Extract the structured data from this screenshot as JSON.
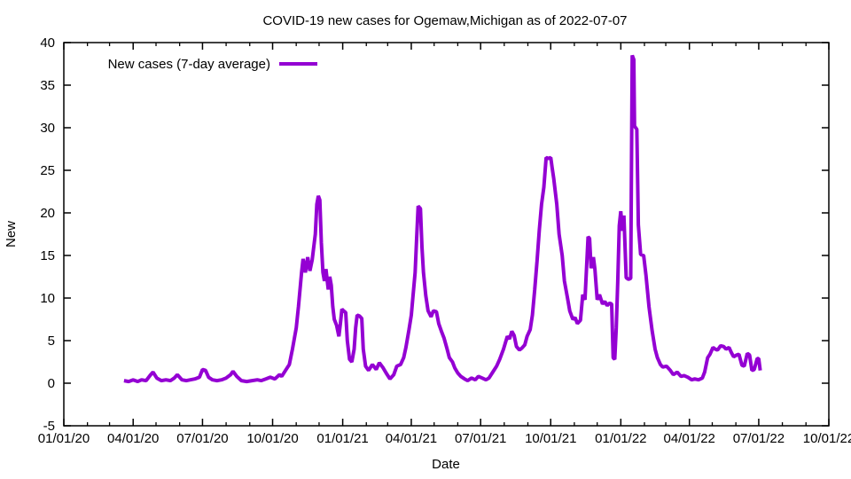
{
  "chart_data": {
    "type": "line",
    "title": "COVID-19 new cases for Ogemaw,Michigan as of 2022-07-07",
    "xlabel": "Date",
    "ylabel": "New",
    "x_range": [
      "2020-01-01",
      "2022-10-01"
    ],
    "ylim": [
      -5,
      40
    ],
    "y_ticks": [
      -5,
      0,
      5,
      10,
      15,
      20,
      25,
      30,
      35,
      40
    ],
    "x_major_ticks": [
      {
        "date": "2020-01-01",
        "label": "01/01/20"
      },
      {
        "date": "2020-04-01",
        "label": "04/01/20"
      },
      {
        "date": "2020-07-01",
        "label": "07/01/20"
      },
      {
        "date": "2020-10-01",
        "label": "10/01/20"
      },
      {
        "date": "2021-01-01",
        "label": "01/01/21"
      },
      {
        "date": "2021-04-01",
        "label": "04/01/21"
      },
      {
        "date": "2021-07-01",
        "label": "07/01/21"
      },
      {
        "date": "2021-10-01",
        "label": "10/01/21"
      },
      {
        "date": "2022-01-01",
        "label": "01/01/22"
      },
      {
        "date": "2022-04-01",
        "label": "04/01/22"
      },
      {
        "date": "2022-07-01",
        "label": "07/01/22"
      },
      {
        "date": "2022-10-01",
        "label": "10/01/22"
      }
    ],
    "x_minor_tick_interval_months": 1,
    "grid": false,
    "legend_position": "top-left-inside",
    "background_color": "#ffffff",
    "axis_color": "#000000",
    "text_color": "#000000",
    "series": [
      {
        "name": "New cases (7-day average)",
        "color": "#9400d3",
        "line_width": 4,
        "points": [
          [
            "2020-03-20",
            0.3
          ],
          [
            "2020-03-26",
            0.2
          ],
          [
            "2020-04-01",
            0.4
          ],
          [
            "2020-04-07",
            0.2
          ],
          [
            "2020-04-12",
            0.4
          ],
          [
            "2020-04-18",
            0.3
          ],
          [
            "2020-04-24",
            1.0
          ],
          [
            "2020-04-27",
            1.3
          ],
          [
            "2020-05-02",
            0.6
          ],
          [
            "2020-05-08",
            0.3
          ],
          [
            "2020-05-14",
            0.4
          ],
          [
            "2020-05-20",
            0.3
          ],
          [
            "2020-05-25",
            0.6
          ],
          [
            "2020-05-29",
            1.0
          ],
          [
            "2020-06-04",
            0.4
          ],
          [
            "2020-06-10",
            0.3
          ],
          [
            "2020-06-15",
            0.4
          ],
          [
            "2020-06-21",
            0.5
          ],
          [
            "2020-06-27",
            0.7
          ],
          [
            "2020-07-01",
            1.6
          ],
          [
            "2020-07-05",
            1.5
          ],
          [
            "2020-07-09",
            0.7
          ],
          [
            "2020-07-14",
            0.4
          ],
          [
            "2020-07-20",
            0.3
          ],
          [
            "2020-07-26",
            0.4
          ],
          [
            "2020-08-01",
            0.6
          ],
          [
            "2020-08-07",
            1.0
          ],
          [
            "2020-08-10",
            1.4
          ],
          [
            "2020-08-15",
            0.8
          ],
          [
            "2020-08-21",
            0.3
          ],
          [
            "2020-08-28",
            0.2
          ],
          [
            "2020-09-04",
            0.3
          ],
          [
            "2020-09-11",
            0.4
          ],
          [
            "2020-09-16",
            0.3
          ],
          [
            "2020-09-22",
            0.5
          ],
          [
            "2020-09-28",
            0.7
          ],
          [
            "2020-10-04",
            0.5
          ],
          [
            "2020-10-10",
            1.0
          ],
          [
            "2020-10-13",
            0.8
          ],
          [
            "2020-10-18",
            1.5
          ],
          [
            "2020-10-23",
            2.2
          ],
          [
            "2020-10-27",
            4.0
          ],
          [
            "2020-11-01",
            6.5
          ],
          [
            "2020-11-04",
            9.0
          ],
          [
            "2020-11-08",
            13.0
          ],
          [
            "2020-11-10",
            14.6
          ],
          [
            "2020-11-13",
            13.0
          ],
          [
            "2020-11-16",
            14.8
          ],
          [
            "2020-11-19",
            13.2
          ],
          [
            "2020-11-22",
            14.5
          ],
          [
            "2020-11-26",
            17.5
          ],
          [
            "2020-11-28",
            21.0
          ],
          [
            "2020-11-30",
            22.0
          ],
          [
            "2020-12-02",
            21.5
          ],
          [
            "2020-12-04",
            16.5
          ],
          [
            "2020-12-06",
            13.0
          ],
          [
            "2020-12-08",
            12.0
          ],
          [
            "2020-12-10",
            13.4
          ],
          [
            "2020-12-13",
            11.0
          ],
          [
            "2020-12-15",
            12.5
          ],
          [
            "2020-12-17",
            11.5
          ],
          [
            "2020-12-19",
            9.0
          ],
          [
            "2020-12-21",
            7.5
          ],
          [
            "2020-12-24",
            6.8
          ],
          [
            "2020-12-27",
            5.5
          ],
          [
            "2020-12-29",
            7.0
          ],
          [
            "2020-12-31",
            8.7
          ],
          [
            "2021-01-02",
            8.5
          ],
          [
            "2021-01-05",
            8.3
          ],
          [
            "2021-01-07",
            5.0
          ],
          [
            "2021-01-10",
            2.8
          ],
          [
            "2021-01-13",
            2.5
          ],
          [
            "2021-01-16",
            4.0
          ],
          [
            "2021-01-18",
            6.5
          ],
          [
            "2021-01-20",
            8.0
          ],
          [
            "2021-01-23",
            7.9
          ],
          [
            "2021-01-26",
            7.6
          ],
          [
            "2021-01-28",
            4.0
          ],
          [
            "2021-01-31",
            2.0
          ],
          [
            "2021-02-04",
            1.5
          ],
          [
            "2021-02-09",
            2.2
          ],
          [
            "2021-02-14",
            1.6
          ],
          [
            "2021-02-18",
            2.4
          ],
          [
            "2021-02-23",
            1.8
          ],
          [
            "2021-02-27",
            1.2
          ],
          [
            "2021-03-04",
            0.5
          ],
          [
            "2021-03-09",
            1.0
          ],
          [
            "2021-03-13",
            2.0
          ],
          [
            "2021-03-18",
            2.2
          ],
          [
            "2021-03-22",
            3.0
          ],
          [
            "2021-03-25",
            4.2
          ],
          [
            "2021-03-29",
            6.3
          ],
          [
            "2021-04-01",
            8.0
          ],
          [
            "2021-04-03",
            10.0
          ],
          [
            "2021-04-06",
            13.0
          ],
          [
            "2021-04-08",
            17.0
          ],
          [
            "2021-04-10",
            20.8
          ],
          [
            "2021-04-13",
            20.5
          ],
          [
            "2021-04-15",
            16.0
          ],
          [
            "2021-04-17",
            13.0
          ],
          [
            "2021-04-20",
            10.3
          ],
          [
            "2021-04-23",
            8.5
          ],
          [
            "2021-04-27",
            7.8
          ],
          [
            "2021-04-30",
            8.5
          ],
          [
            "2021-05-04",
            8.4
          ],
          [
            "2021-05-07",
            7.0
          ],
          [
            "2021-05-11",
            6.0
          ],
          [
            "2021-05-14",
            5.3
          ],
          [
            "2021-05-18",
            4.0
          ],
          [
            "2021-05-21",
            3.0
          ],
          [
            "2021-05-25",
            2.5
          ],
          [
            "2021-05-28",
            1.8
          ],
          [
            "2021-06-01",
            1.2
          ],
          [
            "2021-06-05",
            0.8
          ],
          [
            "2021-06-10",
            0.5
          ],
          [
            "2021-06-14",
            0.3
          ],
          [
            "2021-06-19",
            0.6
          ],
          [
            "2021-06-24",
            0.4
          ],
          [
            "2021-06-28",
            0.8
          ],
          [
            "2021-07-03",
            0.6
          ],
          [
            "2021-07-08",
            0.4
          ],
          [
            "2021-07-12",
            0.6
          ],
          [
            "2021-07-17",
            1.3
          ],
          [
            "2021-07-22",
            2.0
          ],
          [
            "2021-07-26",
            2.8
          ],
          [
            "2021-07-31",
            4.0
          ],
          [
            "2021-08-05",
            5.5
          ],
          [
            "2021-08-08",
            5.2
          ],
          [
            "2021-08-11",
            6.1
          ],
          [
            "2021-08-14",
            5.6
          ],
          [
            "2021-08-17",
            4.3
          ],
          [
            "2021-08-21",
            3.9
          ],
          [
            "2021-08-24",
            4.1
          ],
          [
            "2021-08-28",
            4.5
          ],
          [
            "2021-08-31",
            5.5
          ],
          [
            "2021-09-04",
            6.3
          ],
          [
            "2021-09-07",
            8.0
          ],
          [
            "2021-09-10",
            11.0
          ],
          [
            "2021-09-13",
            14.3
          ],
          [
            "2021-09-16",
            18.0
          ],
          [
            "2021-09-19",
            21.0
          ],
          [
            "2021-09-22",
            23.0
          ],
          [
            "2021-09-25",
            26.5
          ],
          [
            "2021-09-28",
            26.4
          ],
          [
            "2021-10-01",
            26.5
          ],
          [
            "2021-10-03",
            25.2
          ],
          [
            "2021-10-05",
            24.0
          ],
          [
            "2021-10-09",
            21.0
          ],
          [
            "2021-10-12",
            17.5
          ],
          [
            "2021-10-16",
            15.0
          ],
          [
            "2021-10-19",
            12.0
          ],
          [
            "2021-10-23",
            10.0
          ],
          [
            "2021-10-26",
            8.5
          ],
          [
            "2021-10-30",
            7.5
          ],
          [
            "2021-11-02",
            7.7
          ],
          [
            "2021-11-05",
            7.0
          ],
          [
            "2021-11-09",
            7.4
          ],
          [
            "2021-11-12",
            10.4
          ],
          [
            "2021-11-15",
            9.8
          ],
          [
            "2021-11-19",
            17.2
          ],
          [
            "2021-11-21",
            17.0
          ],
          [
            "2021-11-23",
            13.5
          ],
          [
            "2021-11-26",
            14.8
          ],
          [
            "2021-11-28",
            13.4
          ],
          [
            "2021-12-01",
            9.8
          ],
          [
            "2021-12-04",
            10.4
          ],
          [
            "2021-12-08",
            9.3
          ],
          [
            "2021-12-11",
            9.6
          ],
          [
            "2021-12-14",
            9.1
          ],
          [
            "2021-12-17",
            9.4
          ],
          [
            "2021-12-20",
            9.3
          ],
          [
            "2021-12-22",
            3.0
          ],
          [
            "2021-12-24",
            2.8
          ],
          [
            "2021-12-26",
            6.5
          ],
          [
            "2021-12-28",
            12.0
          ],
          [
            "2021-12-30",
            18.5
          ],
          [
            "2022-01-01",
            20.2
          ],
          [
            "2022-01-03",
            17.9
          ],
          [
            "2022-01-05",
            19.7
          ],
          [
            "2022-01-08",
            12.4
          ],
          [
            "2022-01-11",
            12.2
          ],
          [
            "2022-01-14",
            12.3
          ],
          [
            "2022-01-16",
            38.5
          ],
          [
            "2022-01-18",
            38.0
          ],
          [
            "2022-01-19",
            30.2
          ],
          [
            "2022-01-22",
            29.8
          ],
          [
            "2022-01-24",
            18.6
          ],
          [
            "2022-01-27",
            15.1
          ],
          [
            "2022-01-31",
            15.0
          ],
          [
            "2022-02-03",
            12.7
          ],
          [
            "2022-02-07",
            9.0
          ],
          [
            "2022-02-11",
            6.2
          ],
          [
            "2022-02-15",
            4.0
          ],
          [
            "2022-02-18",
            3.0
          ],
          [
            "2022-02-22",
            2.2
          ],
          [
            "2022-02-25",
            1.9
          ],
          [
            "2022-03-02",
            2.0
          ],
          [
            "2022-03-07",
            1.5
          ],
          [
            "2022-03-11",
            1.0
          ],
          [
            "2022-03-16",
            1.3
          ],
          [
            "2022-03-21",
            0.8
          ],
          [
            "2022-03-25",
            0.9
          ],
          [
            "2022-03-30",
            0.7
          ],
          [
            "2022-04-04",
            0.4
          ],
          [
            "2022-04-08",
            0.5
          ],
          [
            "2022-04-13",
            0.4
          ],
          [
            "2022-04-18",
            0.6
          ],
          [
            "2022-04-21",
            1.3
          ],
          [
            "2022-04-25",
            3.0
          ],
          [
            "2022-04-28",
            3.4
          ],
          [
            "2022-05-02",
            4.2
          ],
          [
            "2022-05-05",
            4.0
          ],
          [
            "2022-05-08",
            3.9
          ],
          [
            "2022-05-12",
            4.4
          ],
          [
            "2022-05-16",
            4.3
          ],
          [
            "2022-05-19",
            4.0
          ],
          [
            "2022-05-23",
            4.2
          ],
          [
            "2022-05-26",
            3.6
          ],
          [
            "2022-05-29",
            3.1
          ],
          [
            "2022-06-02",
            3.3
          ],
          [
            "2022-06-05",
            3.4
          ],
          [
            "2022-06-09",
            2.1
          ],
          [
            "2022-06-12",
            2.0
          ],
          [
            "2022-06-16",
            3.5
          ],
          [
            "2022-06-19",
            3.3
          ],
          [
            "2022-06-22",
            1.5
          ],
          [
            "2022-06-25",
            1.6
          ],
          [
            "2022-06-29",
            2.9
          ],
          [
            "2022-07-01",
            2.9
          ],
          [
            "2022-07-03",
            1.5
          ]
        ]
      }
    ]
  }
}
